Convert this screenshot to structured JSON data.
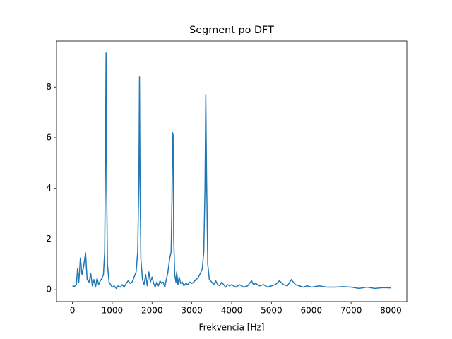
{
  "chart_data": {
    "type": "line",
    "title": "Segment po DFT",
    "xlabel": "Frekvencia [Hz]",
    "color": "#1f77b4",
    "x": [
      0,
      50,
      100,
      130,
      160,
      200,
      240,
      280,
      330,
      370,
      420,
      460,
      500,
      540,
      580,
      620,
      660,
      700,
      740,
      780,
      810,
      830,
      845,
      860,
      880,
      920,
      960,
      1000,
      1050,
      1100,
      1150,
      1200,
      1250,
      1300,
      1350,
      1400,
      1450,
      1500,
      1550,
      1600,
      1640,
      1670,
      1685,
      1700,
      1720,
      1760,
      1800,
      1840,
      1880,
      1920,
      1960,
      2000,
      2040,
      2080,
      2120,
      2160,
      2200,
      2240,
      2280,
      2320,
      2360,
      2400,
      2440,
      2480,
      2500,
      2515,
      2530,
      2545,
      2570,
      2600,
      2620,
      2650,
      2680,
      2720,
      2760,
      2800,
      2850,
      2900,
      2950,
      3000,
      3050,
      3100,
      3150,
      3200,
      3260,
      3300,
      3330,
      3350,
      3370,
      3400,
      3440,
      3500,
      3550,
      3600,
      3650,
      3700,
      3750,
      3800,
      3850,
      3900,
      3950,
      4000,
      4100,
      4200,
      4300,
      4400,
      4500,
      4550,
      4600,
      4700,
      4800,
      4900,
      5000,
      5100,
      5200,
      5300,
      5400,
      5500,
      5600,
      5700,
      5800,
      5900,
      6000,
      6200,
      6400,
      6600,
      6800,
      7000,
      7200,
      7400,
      7600,
      7800,
      8000
    ],
    "values": [
      0.15,
      0.13,
      0.2,
      0.85,
      0.3,
      1.25,
      0.6,
      0.9,
      1.45,
      0.4,
      0.3,
      0.65,
      0.15,
      0.4,
      0.1,
      0.45,
      0.2,
      0.35,
      0.45,
      0.6,
      1.5,
      5.0,
      9.35,
      4.0,
      1.0,
      0.3,
      0.2,
      0.1,
      0.15,
      0.05,
      0.15,
      0.1,
      0.2,
      0.1,
      0.25,
      0.35,
      0.25,
      0.3,
      0.5,
      0.7,
      1.5,
      4.5,
      8.4,
      4.0,
      1.2,
      0.4,
      0.2,
      0.6,
      0.15,
      0.7,
      0.3,
      0.5,
      0.25,
      0.1,
      0.3,
      0.15,
      0.35,
      0.25,
      0.3,
      0.1,
      0.4,
      0.7,
      1.2,
      1.5,
      3.5,
      6.2,
      6.1,
      2.0,
      0.6,
      0.3,
      0.7,
      0.2,
      0.5,
      0.25,
      0.3,
      0.15,
      0.25,
      0.2,
      0.3,
      0.25,
      0.3,
      0.4,
      0.45,
      0.6,
      0.8,
      1.5,
      4.0,
      7.7,
      4.5,
      1.0,
      0.4,
      0.3,
      0.2,
      0.35,
      0.2,
      0.15,
      0.3,
      0.2,
      0.1,
      0.2,
      0.15,
      0.2,
      0.1,
      0.2,
      0.1,
      0.15,
      0.35,
      0.2,
      0.25,
      0.15,
      0.2,
      0.1,
      0.15,
      0.2,
      0.35,
      0.2,
      0.15,
      0.4,
      0.2,
      0.15,
      0.1,
      0.15,
      0.1,
      0.15,
      0.1,
      0.1,
      0.12,
      0.1,
      0.05,
      0.1,
      0.05,
      0.08,
      0.07
    ],
    "xlim": [
      -400,
      8400
    ],
    "ylim": [
      -0.47,
      9.82
    ],
    "xticks": [
      0,
      1000,
      2000,
      3000,
      4000,
      5000,
      6000,
      7000,
      8000
    ],
    "yticks": [
      0,
      2,
      4,
      6,
      8
    ]
  }
}
